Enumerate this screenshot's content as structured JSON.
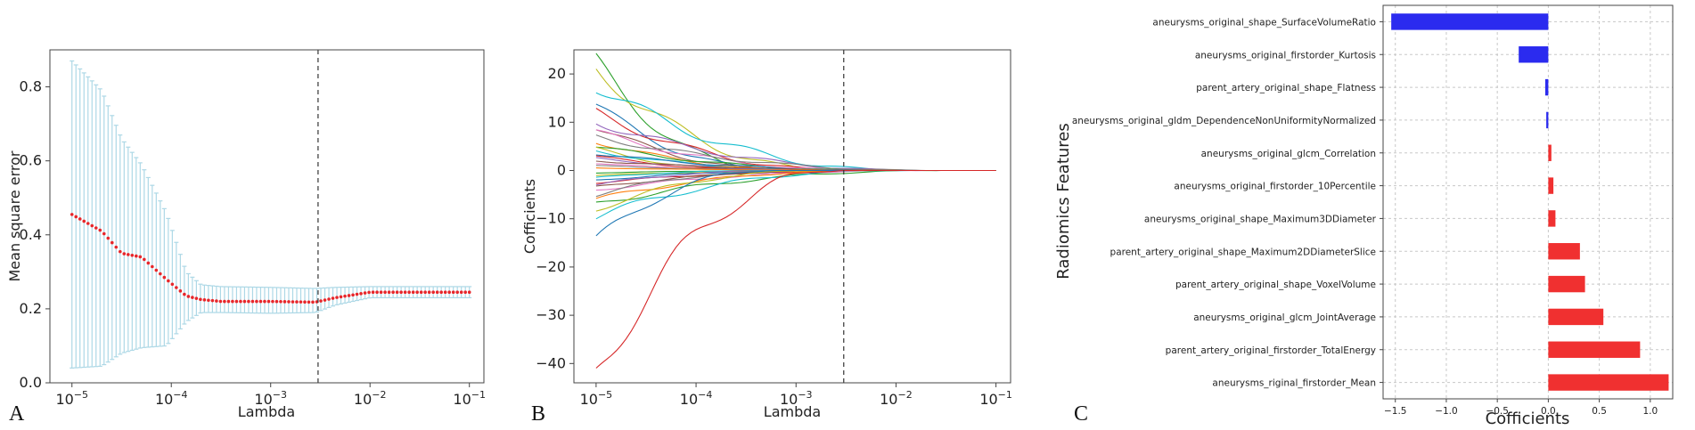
{
  "panels": {
    "a": {
      "letter": "A"
    },
    "b": {
      "letter": "B"
    },
    "c": {
      "letter": "C"
    }
  },
  "colors": {
    "errorbar": "#add8e6",
    "mean_point": "#e8262a",
    "cutoff_line": "#333333",
    "negative_bar": "#2b2bef",
    "positive_bar": "#f03030"
  },
  "chart_data": [
    {
      "id": "mse-vs-lambda",
      "type": "scatter",
      "xscale": "log",
      "xlabel": "Lambda",
      "ylabel": "Mean square error",
      "xlim": [
        6e-06,
        0.14
      ],
      "ylim": [
        0.0,
        0.9
      ],
      "xticks": [
        1e-05,
        0.0001,
        0.001,
        0.01,
        0.1
      ],
      "xtick_labels": [
        [
          "10",
          "−5"
        ],
        [
          "10",
          "−4"
        ],
        [
          "10",
          "−3"
        ],
        [
          "10",
          "−2"
        ],
        [
          "10",
          "−1"
        ]
      ],
      "yticks": [
        0.0,
        0.2,
        0.4,
        0.6,
        0.8
      ],
      "ytick_labels": [
        "0.0",
        "0.2",
        "0.4",
        "0.6",
        "0.8"
      ],
      "cutoff_lambda": 0.003,
      "curve_knots": {
        "log10_lambda": [
          -5.0,
          -4.7,
          -4.5,
          -4.3,
          -4.05,
          -3.85,
          -3.7,
          -3.5,
          -3.0,
          -2.55,
          -2.35,
          -2.0,
          -1.0
        ],
        "mean": [
          0.455,
          0.41,
          0.35,
          0.34,
          0.28,
          0.235,
          0.225,
          0.22,
          0.22,
          0.218,
          0.23,
          0.245,
          0.245
        ],
        "upper": [
          0.87,
          0.79,
          0.66,
          0.59,
          0.46,
          0.3,
          0.265,
          0.26,
          0.258,
          0.255,
          0.258,
          0.26,
          0.26
        ],
        "lower": [
          0.04,
          0.045,
          0.08,
          0.095,
          0.1,
          0.165,
          0.19,
          0.19,
          0.188,
          0.19,
          0.21,
          0.23,
          0.23
        ]
      },
      "n_points": 100
    },
    {
      "id": "coef-paths",
      "type": "line",
      "xscale": "log",
      "xlabel": "Lambda",
      "ylabel": "Cofficients",
      "xlim": [
        6e-06,
        0.14
      ],
      "ylim": [
        -44,
        25
      ],
      "xticks": [
        1e-05,
        0.0001,
        0.001,
        0.01,
        0.1
      ],
      "xtick_labels": [
        [
          "10",
          "−5"
        ],
        [
          "10",
          "−4"
        ],
        [
          "10",
          "−3"
        ],
        [
          "10",
          "−2"
        ],
        [
          "10",
          "−1"
        ]
      ],
      "yticks": [
        -40,
        -30,
        -20,
        -10,
        0,
        10,
        20
      ],
      "ytick_labels": [
        "−40",
        "−30",
        "−20",
        "−10",
        "0",
        "10",
        "20"
      ],
      "cutoff_lambda": 0.003,
      "series_start_values": [
        22.5,
        21.0,
        17.5,
        13.5,
        12.0,
        10.0,
        9.0,
        8.0,
        7.0,
        6.0,
        5.0,
        4.5,
        4.0,
        3.5,
        3.0,
        2.5,
        2.0,
        1.5,
        1.0,
        0.5,
        -0.5,
        -1.0,
        -1.5,
        -2.0,
        -2.5,
        -3.0,
        -3.5,
        -4.0,
        -5.0,
        -6.0,
        -7.0,
        -8.0,
        -9.5,
        -14.5,
        -42.5
      ],
      "series_colors": [
        "#2ca02c",
        "#bcbd22",
        "#17becf",
        "#1f77b4",
        "#d62728",
        "#9467bd",
        "#8c564b",
        "#e377c2",
        "#7f7f7f",
        "#ff7f0e"
      ]
    },
    {
      "id": "feature-coefs",
      "type": "bar",
      "orientation": "horizontal",
      "xlabel": "Cofficients",
      "ylabel": "Radiomics Features",
      "xlim": [
        -1.62,
        1.22
      ],
      "xticks": [
        -1.5,
        -1.0,
        -0.5,
        0.0,
        0.5,
        1.0
      ],
      "xtick_labels": [
        "−1.5",
        "−1.0",
        "−0.5",
        "0.0",
        "0.5",
        "1.0"
      ],
      "categories": [
        "aneurysms_original_shape_SurfaceVolumeRatio",
        "aneurysms_original_firstorder_Kurtosis",
        "parent_artery_original_shape_Flatness",
        "aneurysms_original_gldm_DependenceNonUniformityNormalized",
        "aneurysms_original_glcm_Correlation",
        "aneurysms_original_firstorder_10Percentile",
        "aneurysms_original_shape_Maximum3DDiameter",
        "parent_artery_original_shape_Maximum2DDiameterSlice",
        "parent_artery_original_shape_VoxelVolume",
        "aneurysms_original_glcm_JointAverage",
        "parent_artery_original_firstorder_TotalEnergy",
        "aneurysms_riginal_firstorder_Mean"
      ],
      "values": [
        -1.54,
        -0.29,
        -0.03,
        -0.02,
        0.03,
        0.05,
        0.07,
        0.31,
        0.36,
        0.54,
        0.9,
        1.18
      ],
      "grid": true
    }
  ]
}
